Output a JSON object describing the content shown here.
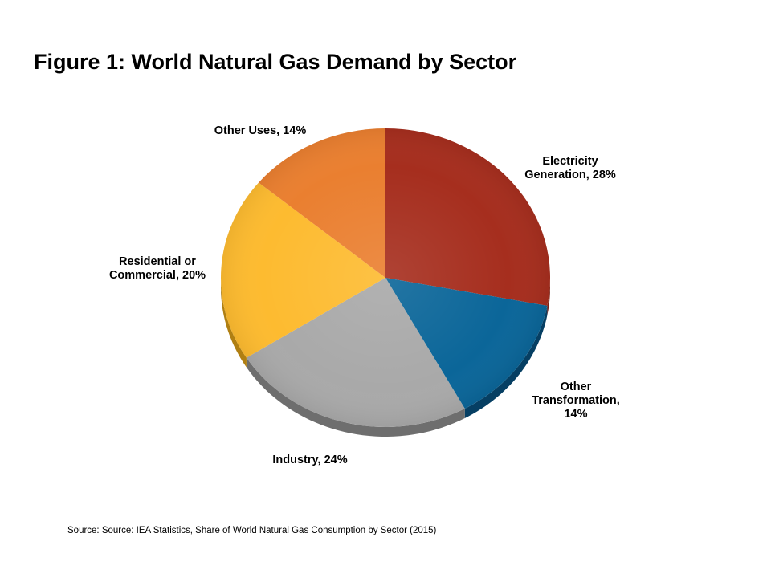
{
  "title": "Figure 1: World Natural Gas Demand by Sector",
  "source": "Source: Source: IEA Statistics, Share of World Natural Gas Consumption by Sector (2015)",
  "chart_data": {
    "type": "pie",
    "title": "Figure 1: World Natural Gas Demand by Sector",
    "start_angle_deg": 0,
    "direction": "clockwise",
    "slices": [
      {
        "label_lines": [
          "Electricity",
          "Generation, 28%"
        ],
        "value": 28,
        "color": "#A62E1E",
        "side": "#7A2014"
      },
      {
        "label_lines": [
          "Other",
          "Transformation,",
          "14%"
        ],
        "value": 14,
        "color": "#0B6699",
        "side": "#063F63"
      },
      {
        "label_lines": [
          "Industry, 24%"
        ],
        "value": 24,
        "color": "#A9A9A9",
        "side": "#6E6E6E"
      },
      {
        "label_lines": [
          "Residential or",
          "Commercial, 20%"
        ],
        "value": 20,
        "color": "#FDBB30",
        "side": "#B07F12"
      },
      {
        "label_lines": [
          "Other Uses, 14%"
        ],
        "value": 14,
        "color": "#EA7F30",
        "side": "#A8561C"
      }
    ]
  }
}
